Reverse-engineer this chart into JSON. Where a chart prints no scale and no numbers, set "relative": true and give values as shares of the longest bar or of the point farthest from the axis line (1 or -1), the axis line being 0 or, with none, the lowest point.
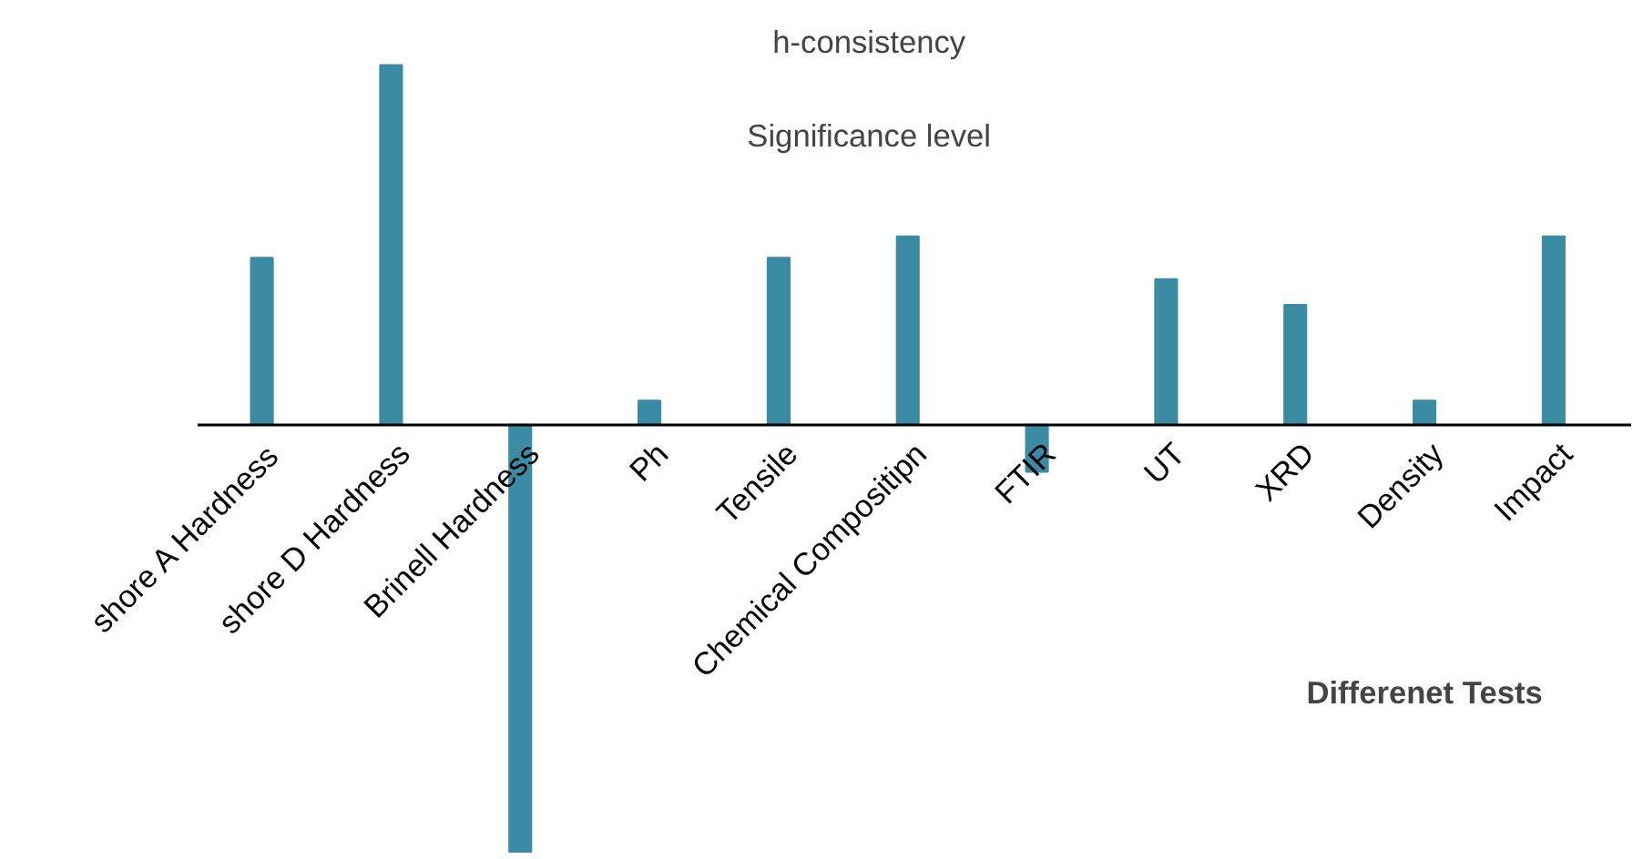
{
  "chart_data": {
    "type": "bar",
    "relative": true,
    "categories": [
      "shore A Hardness",
      "shore D Hardness",
      "Brinell Hardness",
      "Ph",
      "Tensile",
      "Chemical Compositipn",
      "FTIR",
      "UT",
      "XRD",
      "Density",
      "Impact"
    ],
    "values": [
      0.39,
      0.84,
      -1,
      0.056,
      0.39,
      0.44,
      -0.11,
      0.34,
      0.28,
      0.056,
      0.44
    ],
    "color": "#3a8ba3",
    "xlabel": "Differenet Tests",
    "annotations": [
      "h-consistency",
      "Significance level"
    ],
    "grid": false
  }
}
